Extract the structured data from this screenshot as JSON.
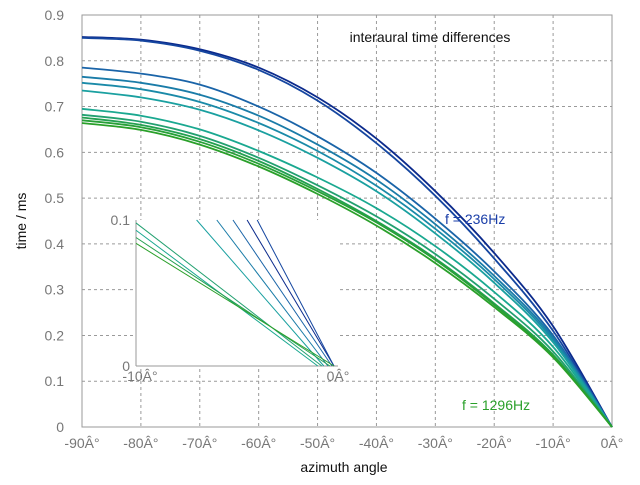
{
  "chart_data": {
    "type": "line",
    "title": "interaural time differences",
    "xlabel": "azimuth angle",
    "ylabel": "time / ms",
    "xlim": [
      -90,
      0
    ],
    "ylim": [
      0,
      0.9
    ],
    "xticks": [
      -90,
      -80,
      -70,
      -60,
      -50,
      -40,
      -30,
      -20,
      -10,
      0
    ],
    "xtick_labels": [
      "-90Â°",
      "-80Â°",
      "-70Â°",
      "-60Â°",
      "-50Â°",
      "-40Â°",
      "-30Â°",
      "-20Â°",
      "-10Â°",
      "0Â°"
    ],
    "yticks": [
      0,
      0.1,
      0.2,
      0.3,
      0.4,
      0.5,
      0.6,
      0.7,
      0.8,
      0.9
    ],
    "ytick_labels": [
      "0",
      "0.1",
      "0.2",
      "0.3",
      "0.4",
      "0.5",
      "0.6",
      "0.7",
      "0.8",
      "0.9"
    ],
    "grid": true,
    "annotations": [
      {
        "text": "f = 236Hz",
        "x": -29,
        "y": 0.46,
        "color": "#1a3ea8"
      },
      {
        "text": "f = 1296Hz",
        "x": -26,
        "y": 0.05,
        "color": "#2aa02a"
      }
    ],
    "series": [
      {
        "color": "#0b2a8c",
        "values": [
          0.852,
          0.846,
          0.825,
          0.785,
          0.72,
          0.63,
          0.515,
          0.38,
          0.22,
          0.0
        ]
      },
      {
        "color": "#1546a0",
        "values": [
          0.85,
          0.844,
          0.822,
          0.78,
          0.713,
          0.62,
          0.505,
          0.368,
          0.21,
          0.0
        ]
      },
      {
        "color": "#1a64a8",
        "values": [
          0.785,
          0.772,
          0.748,
          0.7,
          0.635,
          0.555,
          0.455,
          0.34,
          0.2,
          0.0
        ]
      },
      {
        "color": "#1a7ca8",
        "values": [
          0.765,
          0.752,
          0.726,
          0.68,
          0.617,
          0.54,
          0.443,
          0.33,
          0.195,
          0.0
        ]
      },
      {
        "color": "#1a8aa8",
        "values": [
          0.752,
          0.738,
          0.71,
          0.664,
          0.603,
          0.527,
          0.433,
          0.323,
          0.19,
          0.0
        ]
      },
      {
        "color": "#1aa0a0",
        "values": [
          0.735,
          0.72,
          0.693,
          0.648,
          0.588,
          0.515,
          0.423,
          0.315,
          0.185,
          0.0
        ]
      },
      {
        "color": "#1aa890",
        "values": [
          0.695,
          0.68,
          0.65,
          0.603,
          0.545,
          0.478,
          0.395,
          0.295,
          0.175,
          0.0
        ]
      },
      {
        "color": "#22a070",
        "values": [
          0.682,
          0.667,
          0.636,
          0.588,
          0.528,
          0.46,
          0.378,
          0.28,
          0.165,
          0.0
        ]
      },
      {
        "color": "#24a050",
        "values": [
          0.676,
          0.66,
          0.629,
          0.581,
          0.52,
          0.45,
          0.368,
          0.27,
          0.158,
          0.0
        ]
      },
      {
        "color": "#28a038",
        "values": [
          0.67,
          0.655,
          0.623,
          0.575,
          0.515,
          0.447,
          0.365,
          0.267,
          0.155,
          0.0
        ]
      },
      {
        "color": "#2aa02a",
        "values": [
          0.664,
          0.649,
          0.617,
          0.569,
          0.509,
          0.44,
          0.358,
          0.262,
          0.152,
          0.0
        ]
      }
    ],
    "x": [
      -90,
      -80,
      -70,
      -60,
      -50,
      -40,
      -30,
      -20,
      -10,
      0
    ],
    "inset": {
      "xlim": [
        -10,
        0
      ],
      "ylim": [
        0,
        0.1
      ],
      "xtick_labels": [
        "-10Â°",
        "0Â°"
      ],
      "ytick_labels": [
        "0",
        "0.1"
      ],
      "lines": [
        {
          "color": "#0b2a8c",
          "x0": -4.5,
          "y0": 0.1,
          "x1": -0.2,
          "y1": 0.0
        },
        {
          "color": "#1546a0",
          "x0": -4.0,
          "y0": 0.1,
          "x1": -0.2,
          "y1": 0.0
        },
        {
          "color": "#1a64a8",
          "x0": -5.2,
          "y0": 0.1,
          "x1": -0.3,
          "y1": 0.0
        },
        {
          "color": "#1a7ca8",
          "x0": -6.0,
          "y0": 0.1,
          "x1": -0.5,
          "y1": 0.0
        },
        {
          "color": "#1aa0a0",
          "x0": -7.0,
          "y0": 0.1,
          "x1": -0.7,
          "y1": 0.0
        },
        {
          "color": "#1aa890",
          "x0": -10.0,
          "y0": 0.093,
          "x1": -1.0,
          "y1": 0.0
        },
        {
          "color": "#22a070",
          "x0": -10.0,
          "y0": 0.098,
          "x1": -0.8,
          "y1": 0.0
        },
        {
          "color": "#24a050",
          "x0": -10.0,
          "y0": 0.088,
          "x1": -0.4,
          "y1": 0.0
        },
        {
          "color": "#2aa02a",
          "x0": -10.0,
          "y0": 0.084,
          "x1": -0.2,
          "y1": 0.0
        }
      ]
    }
  }
}
